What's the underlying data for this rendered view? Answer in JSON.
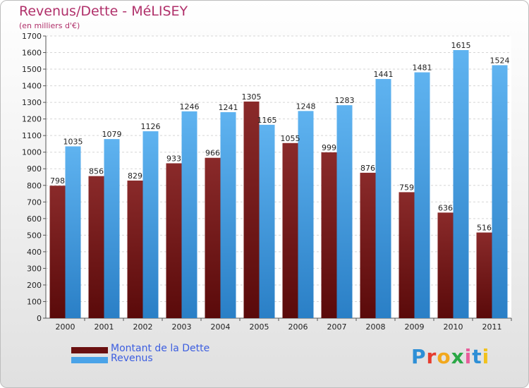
{
  "header": {
    "title": "Revenus/Dette - MéLISEY",
    "subtitle": "(en milliers d'€)"
  },
  "logo": {
    "text": "Proxiti",
    "colors": [
      "#2d8fd6",
      "#e63c2e",
      "#f2a81d",
      "#2aa846",
      "#e85d9a",
      "#2d8fd6",
      "#f2c21d"
    ]
  },
  "chart_data": {
    "type": "bar",
    "categories": [
      "2000",
      "2001",
      "2002",
      "2003",
      "2004",
      "2005",
      "2006",
      "2007",
      "2008",
      "2009",
      "2010",
      "2011"
    ],
    "series": [
      {
        "name": "Montant de la Dette",
        "color": "#7a1c1c",
        "values": [
          798,
          856,
          829,
          933,
          966,
          1305,
          1055,
          999,
          876,
          759,
          636,
          516
        ],
        "labels": [
          "798",
          "856",
          "829",
          "933",
          "966",
          "1305",
          "1055",
          "999",
          "876",
          "759",
          "636",
          "516"
        ]
      },
      {
        "name": "Revenus",
        "color": "#4aa3e8",
        "values": [
          1035,
          1079,
          1126,
          1246,
          1241,
          1165,
          1248,
          1283,
          1441,
          1481,
          1615,
          1524
        ],
        "labels": [
          "1035",
          "1079",
          "1126",
          "1246",
          "1241",
          "1165",
          "1248",
          "1283",
          "1441",
          "1481",
          "1615",
          "1524"
        ]
      }
    ],
    "ylim": [
      0,
      1700
    ],
    "yticks": [
      "0",
      "100",
      "200",
      "300",
      "400",
      "500",
      "600",
      "700",
      "800",
      "900",
      "1000",
      "1100",
      "1200",
      "1300",
      "1400",
      "1500",
      "1600",
      "1700"
    ],
    "grid": true,
    "legend_position": "bottom-left"
  }
}
